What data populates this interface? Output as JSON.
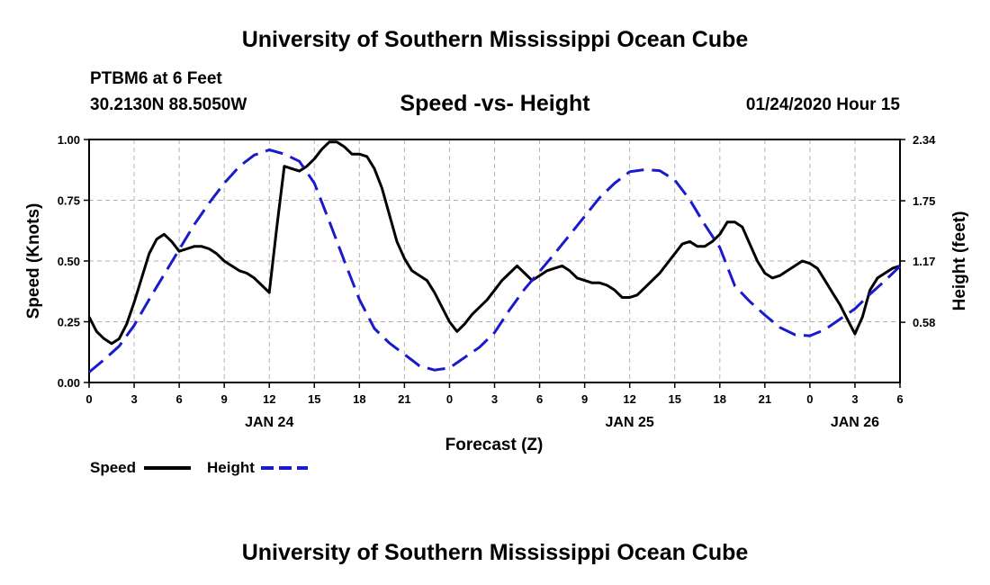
{
  "header": {
    "top_title": "University of Southern Mississippi Ocean Cube",
    "station": "PTBM6 at 6 Feet",
    "coords": "30.2130N 88.5050W",
    "datetime": "01/24/2020 Hour 15",
    "bottom_title": "University of Southern Mississippi Ocean Cube"
  },
  "chart_data": {
    "type": "line",
    "title": "Speed -vs- Height",
    "xlabel": "Forecast (Z)",
    "ylabel_left": "Speed (Knots)",
    "ylabel_right": "Height (feet)",
    "x_range_hours": [
      0,
      54
    ],
    "x_ticks": [
      "0",
      "3",
      "6",
      "9",
      "12",
      "15",
      "18",
      "21",
      "0",
      "3",
      "6",
      "9",
      "12",
      "15",
      "18",
      "21",
      "0",
      "3",
      "6"
    ],
    "date_labels": [
      {
        "label": "JAN 24",
        "hour": 12
      },
      {
        "label": "JAN 25",
        "hour": 36
      },
      {
        "label": "JAN 26",
        "hour": 51
      }
    ],
    "y_left_ticks": [
      "0.00",
      "0.25",
      "0.50",
      "0.75",
      "1.00"
    ],
    "ylim_left": [
      0,
      1
    ],
    "y_right_ticks": [
      "0.58",
      "1.17",
      "1.75",
      "2.34"
    ],
    "ylim_right": [
      0,
      2.34
    ],
    "grid": true,
    "legend": [
      {
        "name": "Speed",
        "color": "#000000",
        "style": "solid"
      },
      {
        "name": "Height",
        "color": "#1a1acc",
        "style": "dashed"
      }
    ],
    "series": [
      {
        "name": "Speed",
        "axis": "left",
        "color": "#000000",
        "x": [
          0,
          0.5,
          1,
          1.5,
          2,
          2.5,
          3,
          3.5,
          4,
          4.5,
          5,
          5.5,
          6,
          6.5,
          7,
          7.5,
          8,
          8.5,
          9,
          9.5,
          10,
          10.5,
          11,
          11.5,
          12,
          12.5,
          13,
          13.5,
          14,
          14.5,
          15,
          15.5,
          16,
          16.5,
          17,
          17.5,
          18,
          18.5,
          19,
          19.5,
          20,
          20.5,
          21,
          21.5,
          22,
          22.5,
          23,
          23.5,
          24,
          24.5,
          25,
          25.5,
          26,
          26.5,
          27,
          27.5,
          28,
          28.5,
          29,
          29.5,
          30,
          30.5,
          31,
          31.5,
          32,
          32.5,
          33,
          33.5,
          34,
          34.5,
          35,
          35.5,
          36,
          36.5,
          37,
          37.5,
          38,
          38.5,
          39,
          39.5,
          40,
          40.5,
          41,
          41.5,
          42,
          42.5,
          43,
          43.5,
          44,
          44.5,
          45,
          45.5,
          46,
          46.5,
          47,
          47.5,
          48,
          48.5,
          49,
          49.5,
          50,
          50.5,
          51,
          51.5,
          52,
          52.5,
          53,
          53.5,
          54
        ],
        "values": [
          0.27,
          0.21,
          0.18,
          0.16,
          0.18,
          0.24,
          0.33,
          0.43,
          0.53,
          0.59,
          0.61,
          0.58,
          0.54,
          0.55,
          0.56,
          0.56,
          0.55,
          0.53,
          0.5,
          0.48,
          0.46,
          0.45,
          0.43,
          0.4,
          0.37,
          0.64,
          0.89,
          0.88,
          0.87,
          0.89,
          0.92,
          0.96,
          0.99,
          0.99,
          0.97,
          0.94,
          0.94,
          0.93,
          0.88,
          0.8,
          0.69,
          0.58,
          0.51,
          0.46,
          0.44,
          0.42,
          0.37,
          0.31,
          0.25,
          0.21,
          0.24,
          0.28,
          0.31,
          0.34,
          0.38,
          0.42,
          0.45,
          0.48,
          0.45,
          0.42,
          0.44,
          0.46,
          0.47,
          0.48,
          0.46,
          0.43,
          0.42,
          0.41,
          0.41,
          0.4,
          0.38,
          0.35,
          0.35,
          0.36,
          0.39,
          0.42,
          0.45,
          0.49,
          0.53,
          0.57,
          0.58,
          0.56,
          0.56,
          0.58,
          0.61,
          0.66,
          0.66,
          0.64,
          0.57,
          0.5,
          0.45,
          0.43,
          0.44,
          0.46,
          0.48,
          0.5,
          0.49,
          0.47,
          0.42,
          0.37,
          0.32,
          0.26,
          0.2,
          0.27,
          0.38,
          0.43,
          0.45,
          0.47,
          0.48
        ]
      },
      {
        "name": "Height",
        "axis": "right",
        "color": "#1a1acc",
        "x": [
          0,
          1,
          2,
          3,
          4,
          5,
          6,
          7,
          8,
          9,
          10,
          11,
          12,
          13,
          14,
          15,
          16,
          17,
          18,
          19,
          20,
          21,
          22,
          23,
          24,
          25,
          26,
          27,
          28,
          29,
          30,
          31,
          32,
          33,
          34,
          35,
          36,
          37,
          38,
          39,
          40,
          41,
          42,
          43,
          44,
          45,
          46,
          47,
          48,
          49,
          50,
          51,
          52,
          53,
          54
        ],
        "values": [
          0.1,
          0.22,
          0.35,
          0.55,
          0.8,
          1.04,
          1.28,
          1.52,
          1.73,
          1.92,
          2.08,
          2.19,
          2.24,
          2.2,
          2.13,
          1.92,
          1.55,
          1.17,
          0.8,
          0.52,
          0.38,
          0.27,
          0.16,
          0.12,
          0.14,
          0.24,
          0.34,
          0.48,
          0.7,
          0.9,
          1.07,
          1.24,
          1.42,
          1.6,
          1.78,
          1.92,
          2.03,
          2.05,
          2.04,
          1.95,
          1.76,
          1.52,
          1.3,
          0.93,
          0.78,
          0.65,
          0.53,
          0.46,
          0.45,
          0.51,
          0.61,
          0.71,
          0.85,
          0.98,
          1.12
        ]
      }
    ]
  }
}
